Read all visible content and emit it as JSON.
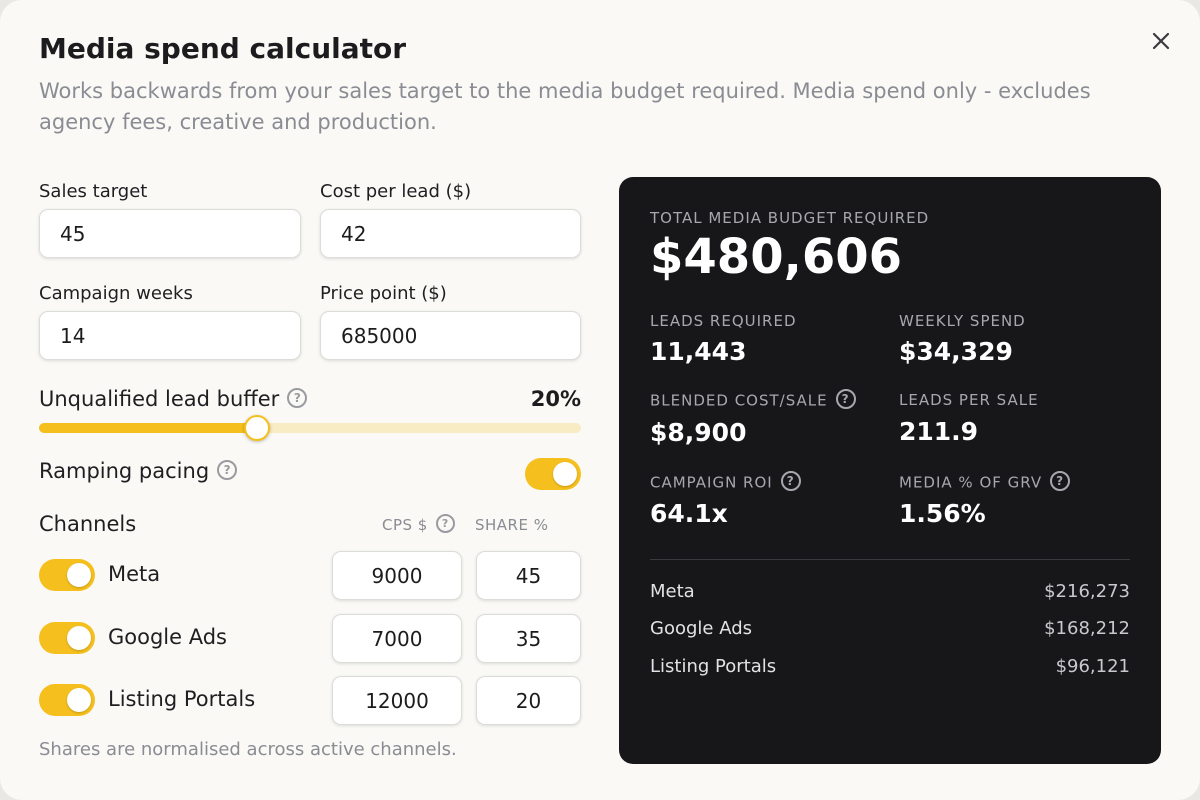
{
  "header": {
    "title": "Media spend calculator",
    "subtitle": "Works backwards from your sales target to the media budget required. Media spend only - excludes agency fees, creative and production."
  },
  "inputs": {
    "sales_target": {
      "label": "Sales target",
      "value": "45"
    },
    "cost_per_lead": {
      "label": "Cost per lead ($)",
      "value": "42"
    },
    "campaign_weeks": {
      "label": "Campaign weeks",
      "value": "14"
    },
    "price_point": {
      "label": "Price point ($)",
      "value": "685000"
    }
  },
  "buffer": {
    "label": "Unqualified lead buffer",
    "value_text": "20%",
    "fraction": 0.403
  },
  "pacing": {
    "label": "Ramping pacing",
    "on": true
  },
  "channels": {
    "label": "Channels",
    "cps_header": "CPS $",
    "share_header": "SHARE %",
    "items": [
      {
        "name": "Meta",
        "on": true,
        "cps": "9000",
        "share": "45"
      },
      {
        "name": "Google Ads",
        "on": true,
        "cps": "7000",
        "share": "35"
      },
      {
        "name": "Listing Portals",
        "on": true,
        "cps": "12000",
        "share": "20"
      }
    ],
    "footnote": "Shares are normalised across active channels."
  },
  "results": {
    "total_label": "TOTAL MEDIA BUDGET REQUIRED",
    "total_value": "$480,606",
    "leads_required_label": "LEADS REQUIRED",
    "leads_required_value": "11,443",
    "weekly_spend_label": "WEEKLY SPEND",
    "weekly_spend_value": "$34,329",
    "blended_cost_label": "BLENDED COST/SALE",
    "blended_cost_value": "$8,900",
    "leads_per_sale_label": "LEADS PER SALE",
    "leads_per_sale_value": "211.9",
    "roi_label": "CAMPAIGN ROI",
    "roi_value": "64.1x",
    "grv_label": "MEDIA % OF GRV",
    "grv_value": "1.56%",
    "breakdown": [
      {
        "name": "Meta",
        "value": "$216,273"
      },
      {
        "name": "Google Ads",
        "value": "$168,212"
      },
      {
        "name": "Listing Portals",
        "value": "$96,121"
      }
    ]
  },
  "icons": {
    "close": "close-icon",
    "help": "help-circle-icon"
  },
  "colors": {
    "accent": "#f5bf1d",
    "panel_bg": "#17171a",
    "accent_light": "#f7ecc4"
  }
}
